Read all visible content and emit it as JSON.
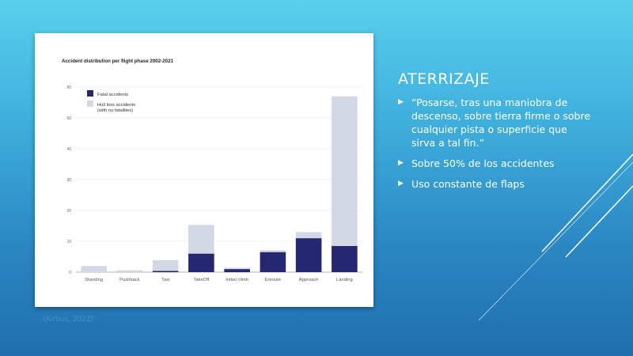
{
  "slide": {
    "title": "ATERRIZAJE",
    "bullets": [
      "“Posarse, tras una maniobra de descenso, sobre tierra firme o sobre cualquier pista o superficie que sirva a tal fin.”",
      "Sobre 50% de los accidentes",
      "Uso constante de flaps"
    ],
    "citation": "(Airbus, 2022)",
    "icons": {
      "bullet": "triangle-right-icon"
    }
  },
  "colors": {
    "fatal": "#252770",
    "hull": "#d3d9e4",
    "text": "#ffffff"
  },
  "chart_data": {
    "type": "bar",
    "stacked": true,
    "title": "Accident distribution per flight phase 2002-2021",
    "xlabel": "",
    "ylabel": "",
    "ylim": [
      0,
      60
    ],
    "yticks": [
      0,
      10,
      20,
      30,
      40,
      50,
      60
    ],
    "grid": true,
    "legend_position": "top-left",
    "categories": [
      "Standing",
      "Pushback",
      "Taxi",
      "TakeOff",
      "Initial climb",
      "Enroute",
      "Approach",
      "Landing"
    ],
    "series": [
      {
        "name": "Fatal accidents",
        "color": "#252770",
        "values": [
          0,
          0,
          0.4,
          6,
          1,
          6.5,
          11,
          8.5
        ]
      },
      {
        "name": "Hull loss accidents (with no fatalities)",
        "color": "#d3d9e4",
        "values": [
          2,
          0.6,
          3.5,
          9.3,
          0.4,
          0.6,
          2,
          48.5
        ]
      }
    ]
  }
}
